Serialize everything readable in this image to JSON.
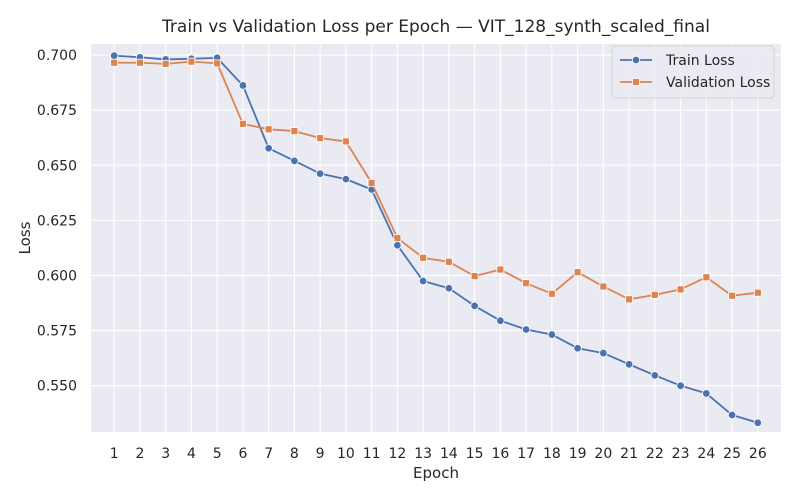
{
  "chart_data": {
    "type": "line",
    "title": "Train vs Validation Loss per Epoch — VIT_128_synth_scaled_final",
    "xlabel": "Epoch",
    "ylabel": "Loss",
    "x": [
      1,
      2,
      3,
      4,
      5,
      6,
      7,
      8,
      9,
      10,
      11,
      12,
      13,
      14,
      15,
      16,
      17,
      18,
      19,
      20,
      21,
      22,
      23,
      24,
      25,
      26
    ],
    "xticks": [
      "1",
      "2",
      "3",
      "4",
      "5",
      "6",
      "7",
      "8",
      "9",
      "10",
      "11",
      "12",
      "13",
      "14",
      "15",
      "16",
      "17",
      "18",
      "19",
      "20",
      "21",
      "22",
      "23",
      "24",
      "25",
      "26"
    ],
    "yticks": [
      0.55,
      0.575,
      0.6,
      0.625,
      0.65,
      0.675,
      0.7
    ],
    "ytick_labels": [
      "0.550",
      "0.575",
      "0.600",
      "0.625",
      "0.650",
      "0.675",
      "0.700"
    ],
    "xlim": [
      0.1,
      26.9
    ],
    "ylim": [
      0.529,
      0.705
    ],
    "grid": true,
    "legend_position": "top-right",
    "series": [
      {
        "name": "Train Loss",
        "color": "#4c72b0",
        "marker": "circle",
        "values": [
          0.6997,
          0.699,
          0.698,
          0.6983,
          0.6987,
          0.6862,
          0.6577,
          0.652,
          0.6462,
          0.6437,
          0.639,
          0.6137,
          0.5975,
          0.5942,
          0.5862,
          0.5795,
          0.5755,
          0.5732,
          0.567,
          0.5648,
          0.5597,
          0.5547,
          0.55,
          0.5465,
          0.5367,
          0.5332
        ]
      },
      {
        "name": "Validation Loss",
        "color": "#dd8452",
        "marker": "square",
        "values": [
          0.6965,
          0.6965,
          0.696,
          0.697,
          0.6962,
          0.6688,
          0.6663,
          0.6655,
          0.6623,
          0.6608,
          0.642,
          0.617,
          0.608,
          0.6062,
          0.5997,
          0.6027,
          0.5965,
          0.5917,
          0.6015,
          0.595,
          0.5892,
          0.5912,
          0.5937,
          0.5992,
          0.5908,
          0.5922
        ]
      }
    ]
  }
}
